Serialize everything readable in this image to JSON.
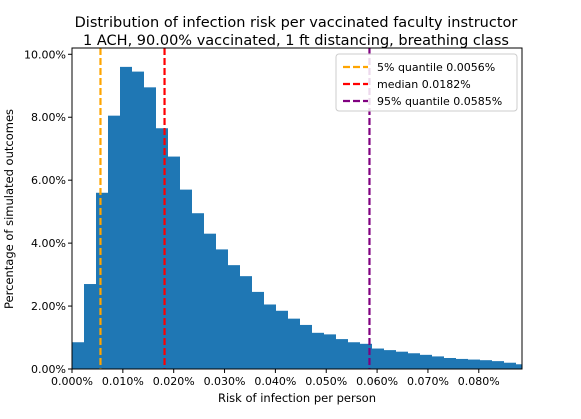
{
  "chart_data": {
    "type": "bar",
    "title": "Distribution of infection risk per vaccinated faculty instructor",
    "subtitle": "1 ACH, 90.00% vaccinated, 1 ft distancing, breathing class",
    "xlabel": "Risk of infection per person",
    "ylabel": "Percentage of simulated outcomes",
    "xlim": [
      0,
      0.0885
    ],
    "ylim": [
      0,
      10.2
    ],
    "x_ticks": [
      0,
      0.01,
      0.02,
      0.03,
      0.04,
      0.05,
      0.06,
      0.07,
      0.08
    ],
    "x_tick_labels": [
      "0.000%",
      "0.010%",
      "0.020%",
      "0.030%",
      "0.040%",
      "0.050%",
      "0.060%",
      "0.070%",
      "0.080%"
    ],
    "y_ticks": [
      0,
      2,
      4,
      6,
      8,
      10
    ],
    "y_tick_labels": [
      "0.00%",
      "2.00%",
      "4.00%",
      "6.00%",
      "8.00%",
      "10.00%"
    ],
    "bin_start": 0,
    "bin_width": 0.00236,
    "values": [
      0.85,
      2.7,
      5.6,
      8.05,
      9.6,
      9.45,
      8.95,
      7.65,
      6.75,
      5.7,
      4.95,
      4.3,
      3.8,
      3.3,
      2.95,
      2.45,
      2.05,
      1.85,
      1.6,
      1.4,
      1.15,
      1.1,
      0.95,
      0.85,
      0.8,
      0.65,
      0.6,
      0.55,
      0.5,
      0.45,
      0.4,
      0.35,
      0.32,
      0.3,
      0.28,
      0.25,
      0.2,
      0.15
    ],
    "bar_color": "#1f77b4",
    "quantile_lines": [
      {
        "label": "5% quantile 0.0056%",
        "x": 0.0056,
        "color": "#ffa500"
      },
      {
        "label": "median 0.0182%",
        "x": 0.0182,
        "color": "#ff0000"
      },
      {
        "label": "95% quantile 0.0585%",
        "x": 0.0585,
        "color": "#800080"
      }
    ],
    "legend_position": "top-right",
    "grid": false
  }
}
